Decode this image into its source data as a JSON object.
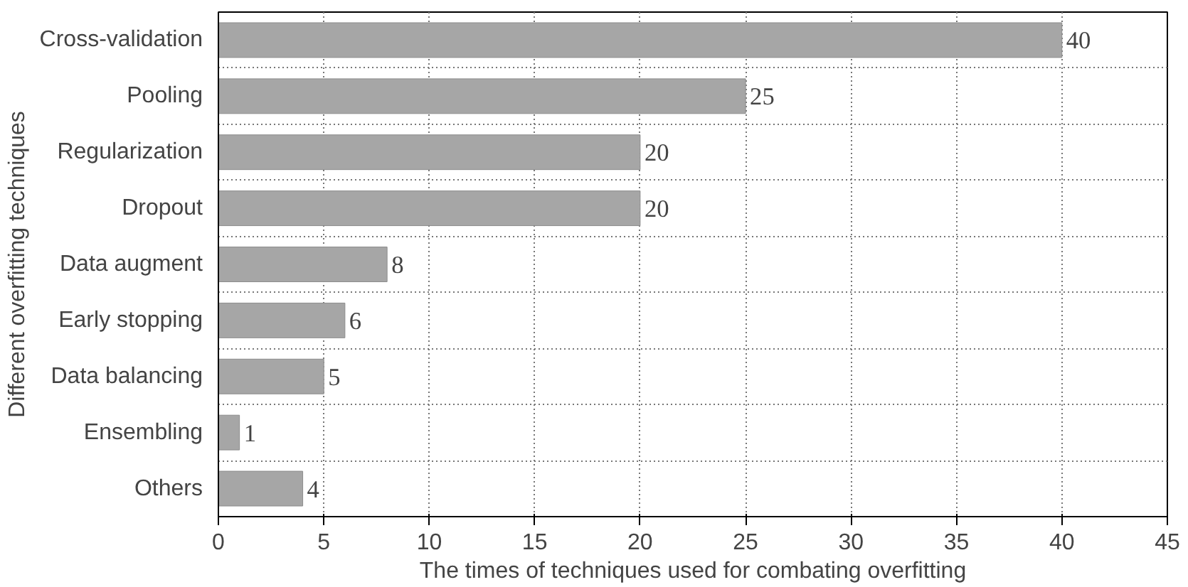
{
  "chart_data": {
    "type": "bar",
    "orientation": "horizontal",
    "xlabel": "The times of techniques used for combating overfitting",
    "ylabel": "Different overfitting techniques",
    "categories": [
      "Cross-validation",
      "Pooling",
      "Regularization",
      "Dropout",
      "Data augment",
      "Early stopping",
      "Data balancing",
      "Ensembling",
      "Others"
    ],
    "values": [
      40,
      25,
      20,
      20,
      8,
      6,
      5,
      1,
      4
    ],
    "color": "#a6a6a6",
    "xlim": [
      0,
      45
    ],
    "xticks": [
      0,
      5,
      10,
      15,
      20,
      25,
      30,
      35,
      40,
      45
    ],
    "grid": true,
    "data_labels": true
  }
}
